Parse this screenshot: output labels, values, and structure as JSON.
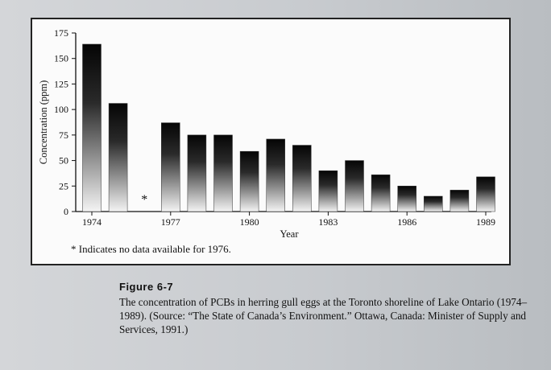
{
  "chart_data": {
    "type": "bar",
    "categories": [
      "1974",
      "1975",
      "1976",
      "1977",
      "1978",
      "1979",
      "1980",
      "1981",
      "1982",
      "1983",
      "1984",
      "1985",
      "1986",
      "1987",
      "1988",
      "1989"
    ],
    "values": [
      164,
      106,
      null,
      87,
      75,
      75,
      59,
      71,
      65,
      40,
      50,
      36,
      25,
      15,
      21,
      34
    ],
    "missing_marker": "*",
    "tick_labels_x": [
      "1974",
      "1977",
      "1980",
      "1983",
      "1986",
      "1989"
    ],
    "yticks": [
      0,
      25,
      50,
      75,
      100,
      125,
      150,
      175
    ],
    "ylim": [
      0,
      175
    ],
    "xlabel": "Year",
    "ylabel": "Concentration (ppm)",
    "footnote": "* Indicates no data available for 1976.",
    "grid": false,
    "bar_gradient": {
      "top": "#050505",
      "bottom": "#f4f4f4"
    }
  },
  "caption": {
    "label": "Figure 6-7",
    "text": "The concentration of PCBs in herring gull eggs at the Toronto shoreline of Lake Ontario (1974–1989). (Source: “The State of Canada’s Environment.” Ottawa, Canada: Minister of Supply and Services, 1991.)"
  }
}
